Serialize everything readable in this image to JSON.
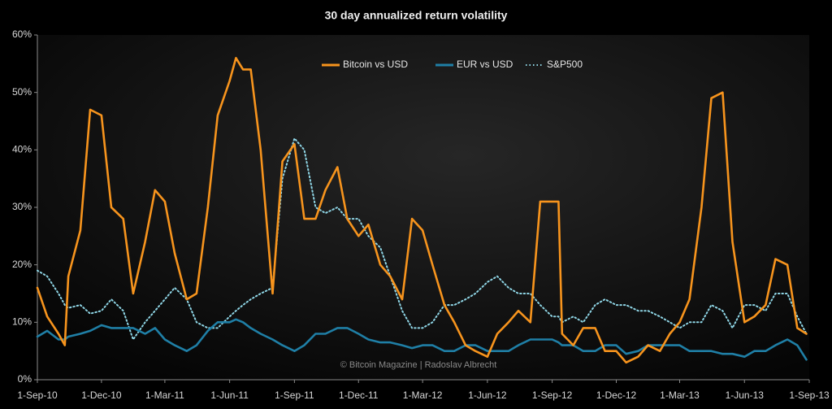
{
  "chart_data": {
    "type": "line",
    "title": "30 day annualized return volatility",
    "annotations": [
      "© Bitcoin Magazine | Radoslav Albrecht"
    ],
    "x": [
      "2010-09-01",
      "2010-09-15",
      "2010-10-01",
      "2010-10-10",
      "2010-10-15",
      "2010-11-01",
      "2010-11-15",
      "2010-12-01",
      "2010-12-15",
      "2011-01-01",
      "2011-01-15",
      "2011-02-01",
      "2011-02-15",
      "2011-03-01",
      "2011-03-15",
      "2011-04-01",
      "2011-04-15",
      "2011-05-01",
      "2011-05-15",
      "2011-06-01",
      "2011-06-10",
      "2011-06-20",
      "2011-07-01",
      "2011-07-15",
      "2011-08-01",
      "2011-08-15",
      "2011-09-01",
      "2011-09-15",
      "2011-10-01",
      "2011-10-15",
      "2011-11-01",
      "2011-11-15",
      "2011-12-01",
      "2011-12-15",
      "2012-01-01",
      "2012-01-15",
      "2012-02-01",
      "2012-02-15",
      "2012-03-01",
      "2012-03-15",
      "2012-04-01",
      "2012-04-15",
      "2012-05-01",
      "2012-05-15",
      "2012-06-01",
      "2012-06-15",
      "2012-07-01",
      "2012-07-15",
      "2012-08-01",
      "2012-08-15",
      "2012-09-01",
      "2012-09-10",
      "2012-09-15",
      "2012-10-01",
      "2012-10-15",
      "2012-11-01",
      "2012-11-15",
      "2012-12-01",
      "2012-12-15",
      "2013-01-01",
      "2013-01-15",
      "2013-02-01",
      "2013-02-15",
      "2013-03-01",
      "2013-03-15",
      "2013-04-01",
      "2013-04-15",
      "2013-05-01",
      "2013-05-15",
      "2013-06-01",
      "2013-06-15",
      "2013-07-01",
      "2013-07-15",
      "2013-08-01",
      "2013-08-15",
      "2013-08-28"
    ],
    "series": [
      {
        "name": "Bitcoin vs USD",
        "color": "#f7941d",
        "linestyle": "solid",
        "values": [
          16,
          11,
          8,
          6,
          18,
          26,
          47,
          46,
          30,
          28,
          15,
          24,
          33,
          31,
          22,
          14,
          15,
          30,
          46,
          52,
          56,
          54,
          54,
          40,
          15,
          38,
          41,
          28,
          28,
          33,
          37,
          28,
          25,
          27,
          20,
          18,
          14,
          28,
          26,
          20,
          13,
          10,
          6,
          5,
          4,
          8,
          10,
          12,
          10,
          31,
          31,
          31,
          8,
          6,
          9,
          9,
          5,
          5,
          3,
          4,
          6,
          5,
          8,
          10,
          14,
          30,
          49,
          50,
          24,
          10,
          11,
          13,
          21,
          20,
          9,
          8
        ]
      },
      {
        "name": "EUR vs USD",
        "color": "#1f7fa6",
        "linestyle": "solid",
        "values": [
          7.5,
          8.5,
          7,
          7,
          7.5,
          8,
          8.5,
          9.5,
          9,
          9,
          9,
          8,
          9,
          7,
          6,
          5,
          6,
          8.5,
          10,
          10,
          10.5,
          10,
          9,
          8,
          7,
          6,
          5,
          6,
          8,
          8,
          9,
          9,
          8,
          7,
          6.5,
          6.5,
          6,
          5.5,
          6,
          6,
          5,
          5,
          6,
          6,
          5,
          5,
          5,
          6,
          7,
          7,
          7,
          6.5,
          6,
          6,
          5,
          5,
          6,
          6,
          4.5,
          5,
          6,
          6,
          6,
          6,
          5,
          5,
          5,
          4.5,
          4.5,
          4,
          5,
          5,
          6,
          7,
          6,
          3.5
        ]
      },
      {
        "name": "S&P500",
        "color": "#8fd6e6",
        "linestyle": "dotted",
        "values": [
          19,
          18,
          15,
          13,
          12.5,
          13,
          11.5,
          12,
          14,
          12,
          7,
          10,
          12,
          14,
          16,
          14,
          10,
          9,
          9,
          11,
          12,
          13,
          14,
          15,
          16,
          35,
          42,
          40,
          30,
          29,
          30,
          28,
          28,
          25,
          23,
          18,
          12,
          9,
          9,
          10,
          13,
          13,
          14,
          15,
          17,
          18,
          16,
          15,
          15,
          13,
          11,
          11,
          10,
          11,
          10,
          13,
          14,
          13,
          13,
          12,
          12,
          11,
          10,
          9,
          10,
          10,
          13,
          12,
          9,
          13,
          13,
          12,
          15,
          15,
          11,
          8
        ]
      }
    ],
    "xlim": [
      "2010-09-01",
      "2013-09-01"
    ],
    "xticks": [
      {
        "value": "2010-09-01",
        "label": "1-Sep-10"
      },
      {
        "value": "2010-12-01",
        "label": "1-Dec-10"
      },
      {
        "value": "2011-03-01",
        "label": "1-Mar-11"
      },
      {
        "value": "2011-06-01",
        "label": "1-Jun-11"
      },
      {
        "value": "2011-09-01",
        "label": "1-Sep-11"
      },
      {
        "value": "2011-12-01",
        "label": "1-Dec-11"
      },
      {
        "value": "2012-03-01",
        "label": "1-Mar-12"
      },
      {
        "value": "2012-06-01",
        "label": "1-Jun-12"
      },
      {
        "value": "2012-09-01",
        "label": "1-Sep-12"
      },
      {
        "value": "2012-12-01",
        "label": "1-Dec-12"
      },
      {
        "value": "2013-03-01",
        "label": "1-Mar-13"
      },
      {
        "value": "2013-06-01",
        "label": "1-Jun-13"
      },
      {
        "value": "2013-09-01",
        "label": "1-Sep-13"
      }
    ],
    "ylim": [
      0,
      60
    ],
    "yticks": [
      {
        "value": 0,
        "label": "0%"
      },
      {
        "value": 10,
        "label": "10%"
      },
      {
        "value": 20,
        "label": "20%"
      },
      {
        "value": 30,
        "label": "30%"
      },
      {
        "value": 40,
        "label": "40%"
      },
      {
        "value": 50,
        "label": "50%"
      },
      {
        "value": 60,
        "label": "60%"
      }
    ],
    "grid": false,
    "legend": "top"
  }
}
